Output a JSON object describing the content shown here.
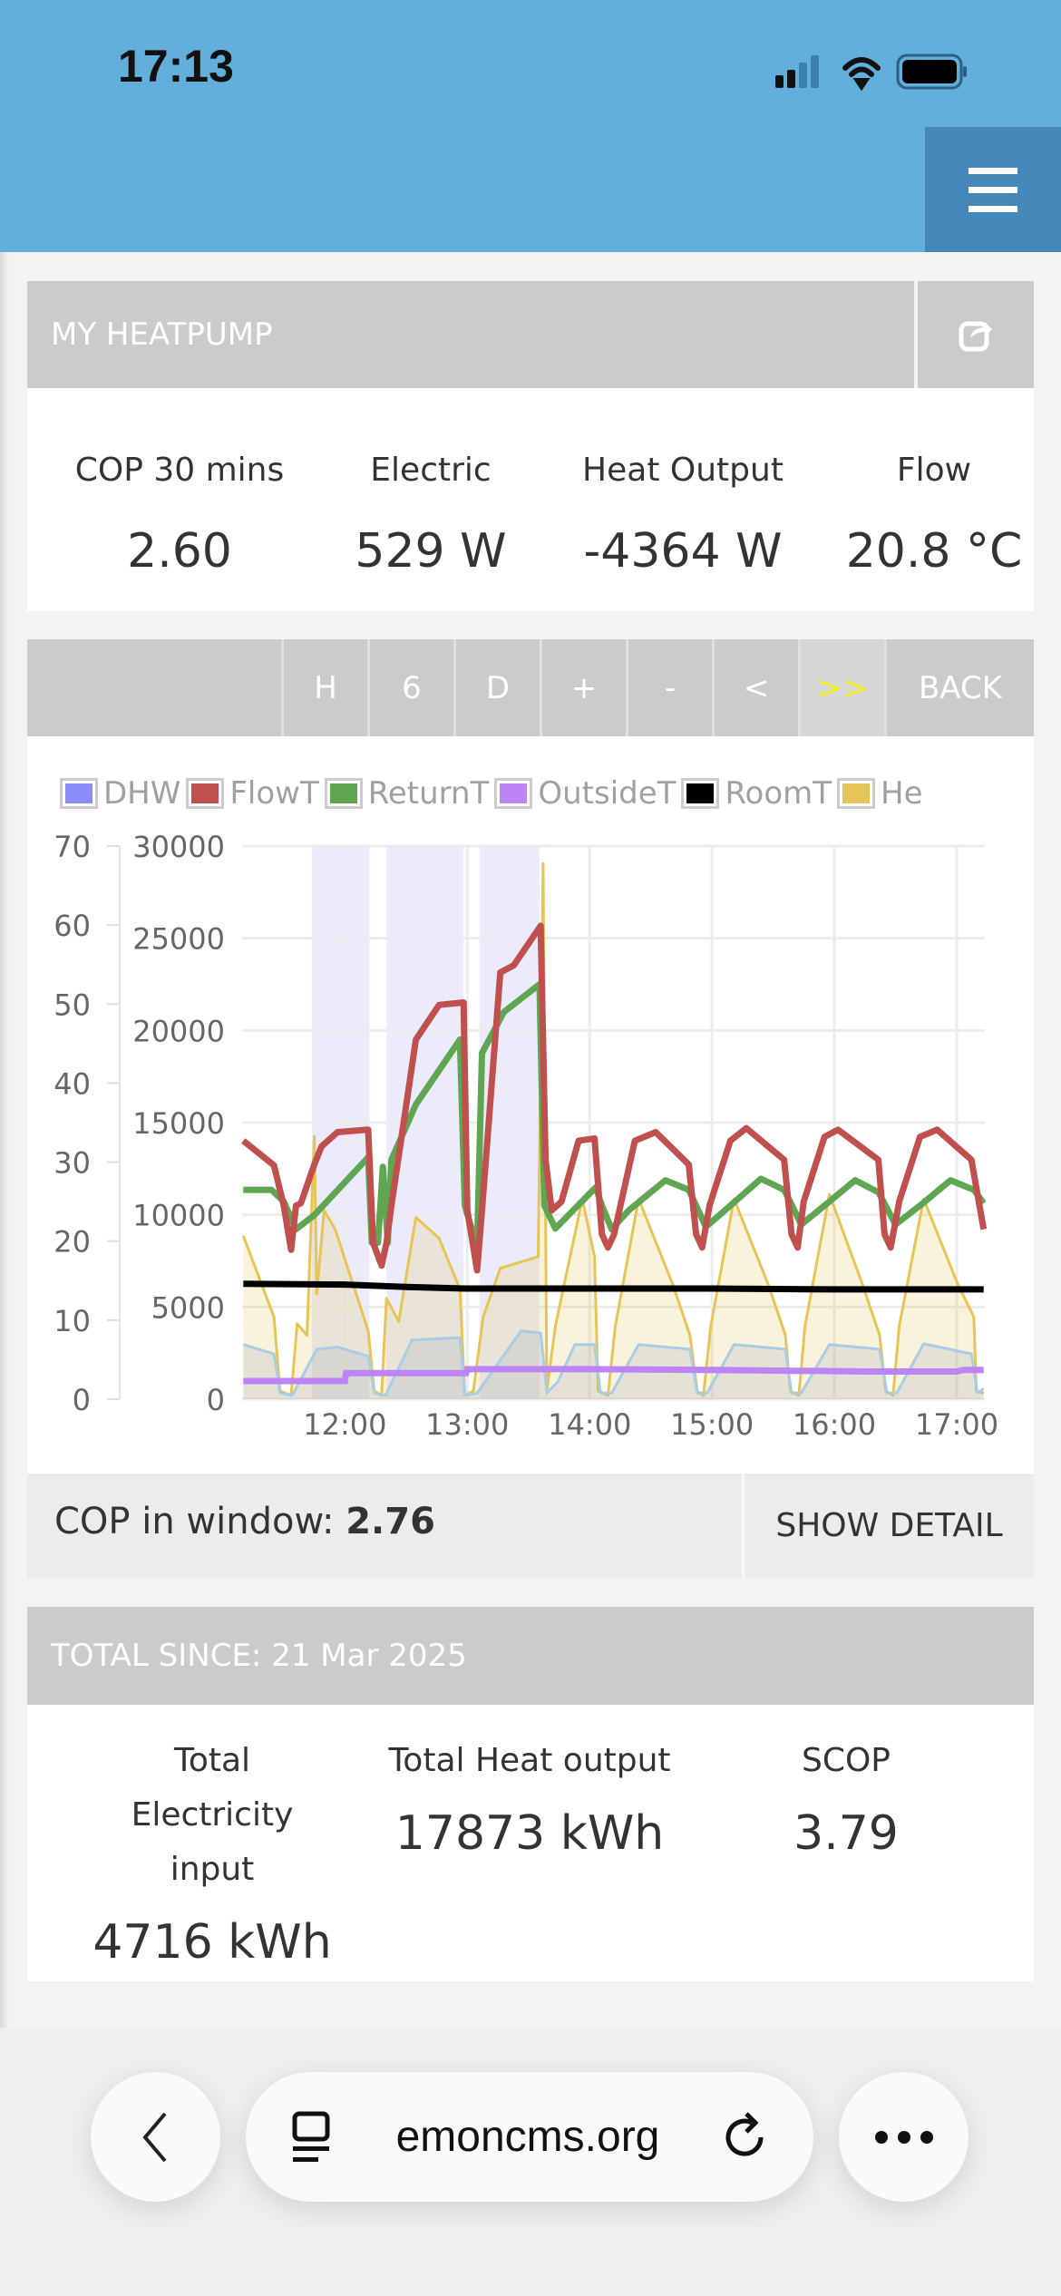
{
  "status_bar": {
    "time": "17:13"
  },
  "app": {
    "title": "MY HEATPUMP"
  },
  "stats": [
    {
      "label": "COP 30 mins",
      "value": "2.60"
    },
    {
      "label": "Electric",
      "value": "529  W"
    },
    {
      "label": "Heat Output",
      "value": "-4364  W"
    },
    {
      "label": "Flow",
      "value": "20.8  °C"
    }
  ],
  "toolbar": {
    "buttons": [
      "H",
      "6",
      "D",
      "+",
      "-",
      "<",
      ">>"
    ],
    "back_label": "BACK",
    "active_color": "#f5ef1e"
  },
  "cop_window": {
    "label": "COP in window: ",
    "value": "2.76",
    "show_detail_label": "SHOW DETAIL"
  },
  "totals": {
    "header": "TOTAL SINCE: 21 Mar 2025",
    "items": [
      {
        "label": "Total Electricity input",
        "value": "4716  kWh"
      },
      {
        "label": "Total Heat output",
        "value": "17873  kWh"
      },
      {
        "label": "SCOP",
        "value": "3.79"
      }
    ]
  },
  "browser": {
    "url": "emoncms.org"
  },
  "chart_data": {
    "type": "line",
    "legend": [
      {
        "name": "DHW",
        "color": "#8a8cf7"
      },
      {
        "name": "FlowT",
        "color": "#c0504d"
      },
      {
        "name": "ReturnT",
        "color": "#5fa552"
      },
      {
        "name": "OutsideT",
        "color": "#bd84f5"
      },
      {
        "name": "RoomT",
        "color": "#000000"
      },
      {
        "name": "He",
        "color": "#e6c455"
      }
    ],
    "xlim": [
      11.16,
      17.23
    ],
    "x_ticks": [
      "12:00",
      "13:00",
      "14:00",
      "15:00",
      "16:00",
      "17:00"
    ],
    "x_tick_values": [
      12,
      13,
      14,
      15,
      16,
      17
    ],
    "y_left": {
      "ylim": [
        0,
        70
      ],
      "ticks": [
        "0",
        "10",
        "20",
        "30",
        "40",
        "50",
        "60",
        "70"
      ]
    },
    "y_right": {
      "ylim": [
        0,
        30000
      ],
      "ticks": [
        "0",
        "5000",
        "10000",
        "15000",
        "20000",
        "25000",
        "30000"
      ]
    },
    "dhw_periods": [
      [
        11.73,
        12.2
      ],
      [
        12.34,
        12.97
      ],
      [
        13.1,
        13.59
      ]
    ],
    "series": {
      "FlowT": [
        [
          11.17,
          32.7
        ],
        [
          11.42,
          29.6
        ],
        [
          11.5,
          24.5
        ],
        [
          11.56,
          18.9
        ],
        [
          11.6,
          24.5
        ],
        [
          11.64,
          24.8
        ],
        [
          11.75,
          29.7
        ],
        [
          11.81,
          32
        ],
        [
          11.94,
          33.8
        ],
        [
          12.19,
          34.1
        ],
        [
          12.23,
          19.8
        ],
        [
          12.3,
          16.9
        ],
        [
          12.34,
          19.8
        ],
        [
          12.38,
          24.5
        ],
        [
          12.58,
          45.5
        ],
        [
          12.77,
          49.9
        ],
        [
          12.97,
          50.2
        ],
        [
          13.0,
          23.9
        ],
        [
          13.08,
          16.3
        ],
        [
          13.12,
          23.9
        ],
        [
          13.27,
          54
        ],
        [
          13.38,
          54.9
        ],
        [
          13.6,
          59.9
        ],
        [
          13.64,
          30.3
        ],
        [
          13.69,
          23.9
        ],
        [
          13.77,
          25
        ],
        [
          13.91,
          32.7
        ],
        [
          14.04,
          33
        ],
        [
          14.1,
          20.9
        ],
        [
          14.15,
          19.2
        ],
        [
          14.2,
          20.9
        ],
        [
          14.37,
          32.7
        ],
        [
          14.54,
          33.8
        ],
        [
          14.81,
          29.7
        ],
        [
          14.87,
          20.9
        ],
        [
          14.92,
          19.2
        ],
        [
          14.98,
          24.5
        ],
        [
          15.15,
          32.7
        ],
        [
          15.28,
          34.3
        ],
        [
          15.59,
          30.3
        ],
        [
          15.65,
          20.9
        ],
        [
          15.7,
          19.2
        ],
        [
          15.75,
          25
        ],
        [
          15.92,
          33.2
        ],
        [
          16.03,
          34.1
        ],
        [
          16.36,
          30.3
        ],
        [
          16.41,
          20.9
        ],
        [
          16.46,
          19.2
        ],
        [
          16.53,
          25
        ],
        [
          16.7,
          33.2
        ],
        [
          16.84,
          34.1
        ],
        [
          17.12,
          30.3
        ],
        [
          17.22,
          21.5
        ]
      ],
      "ReturnT": [
        [
          11.17,
          26.5
        ],
        [
          11.4,
          26.5
        ],
        [
          11.5,
          25
        ],
        [
          11.6,
          21.5
        ],
        [
          11.75,
          23.3
        ],
        [
          12.19,
          30.6
        ],
        [
          12.22,
          19.8
        ],
        [
          12.27,
          19.8
        ],
        [
          12.31,
          29.4
        ],
        [
          12.35,
          19.8
        ],
        [
          12.38,
          30.3
        ],
        [
          12.58,
          37.3
        ],
        [
          12.94,
          45.5
        ],
        [
          12.98,
          24.5
        ],
        [
          13.08,
          19.2
        ],
        [
          13.12,
          43.8
        ],
        [
          13.3,
          49
        ],
        [
          13.59,
          52.5
        ],
        [
          13.63,
          24.5
        ],
        [
          13.72,
          21.6
        ],
        [
          14.05,
          26.8
        ],
        [
          14.1,
          24.5
        ],
        [
          14.18,
          21.5
        ],
        [
          14.32,
          23.9
        ],
        [
          14.62,
          27.7
        ],
        [
          14.81,
          26.5
        ],
        [
          14.95,
          21.8
        ],
        [
          15.15,
          24.5
        ],
        [
          15.4,
          27.9
        ],
        [
          15.59,
          26.5
        ],
        [
          15.73,
          22.1
        ],
        [
          15.92,
          24.5
        ],
        [
          16.17,
          27.7
        ],
        [
          16.36,
          26.2
        ],
        [
          16.5,
          22.1
        ],
        [
          16.7,
          24.5
        ],
        [
          16.95,
          27.7
        ],
        [
          17.14,
          26.5
        ],
        [
          17.22,
          24.8
        ]
      ],
      "RoomT": [
        [
          11.17,
          14.6
        ],
        [
          12.0,
          14.5
        ],
        [
          12.5,
          14.2
        ],
        [
          13.0,
          14.0
        ],
        [
          14.0,
          14.0
        ],
        [
          15.0,
          14.0
        ],
        [
          16.0,
          13.9
        ],
        [
          17.22,
          13.9
        ]
      ],
      "OutsideT": [
        [
          11.17,
          2.3
        ],
        [
          12.0,
          2.3
        ],
        [
          12.01,
          3.3
        ],
        [
          12.99,
          3.3
        ],
        [
          13.0,
          3.8
        ],
        [
          14.0,
          3.8
        ],
        [
          15.0,
          3.7
        ],
        [
          16.3,
          3.5
        ],
        [
          17.0,
          3.5
        ],
        [
          17.05,
          3.7
        ],
        [
          17.22,
          3.7
        ]
      ],
      "He": [
        [
          11.17,
          8855
        ],
        [
          11.42,
          4465
        ],
        [
          11.47,
          450
        ],
        [
          11.56,
          200
        ],
        [
          11.61,
          4090
        ],
        [
          11.69,
          3460
        ],
        [
          11.75,
          14250
        ],
        [
          11.77,
          5720
        ],
        [
          11.83,
          10230
        ],
        [
          11.92,
          9230
        ],
        [
          12.19,
          3710
        ],
        [
          12.24,
          450
        ],
        [
          12.3,
          200
        ],
        [
          12.34,
          5470
        ],
        [
          12.44,
          4210
        ],
        [
          12.58,
          9860
        ],
        [
          12.77,
          8730
        ],
        [
          12.94,
          5970
        ],
        [
          12.98,
          200
        ],
        [
          13.05,
          450
        ],
        [
          13.13,
          4460
        ],
        [
          13.27,
          7100
        ],
        [
          13.58,
          7730
        ],
        [
          13.62,
          29050
        ],
        [
          13.65,
          450
        ],
        [
          13.72,
          3960
        ],
        [
          13.94,
          10860
        ],
        [
          14.04,
          7730
        ],
        [
          14.07,
          450
        ],
        [
          14.15,
          200
        ],
        [
          14.21,
          3960
        ],
        [
          14.4,
          10860
        ],
        [
          14.68,
          6220
        ],
        [
          14.82,
          3460
        ],
        [
          14.88,
          450
        ],
        [
          14.93,
          200
        ],
        [
          14.99,
          3960
        ],
        [
          15.18,
          10860
        ],
        [
          15.46,
          6220
        ],
        [
          15.6,
          3460
        ],
        [
          15.64,
          450
        ],
        [
          15.71,
          200
        ],
        [
          15.76,
          3960
        ],
        [
          15.96,
          11110
        ],
        [
          16.23,
          6220
        ],
        [
          16.37,
          3460
        ],
        [
          16.42,
          450
        ],
        [
          16.48,
          200
        ],
        [
          16.53,
          3960
        ],
        [
          16.73,
          10860
        ],
        [
          17.01,
          6220
        ],
        [
          17.14,
          4460
        ],
        [
          17.16,
          450
        ],
        [
          17.22,
          330
        ]
      ],
      "Electric": [
        [
          11.17,
          2960
        ],
        [
          11.42,
          2460
        ],
        [
          11.47,
          330
        ],
        [
          11.57,
          200
        ],
        [
          11.77,
          2710
        ],
        [
          11.94,
          2830
        ],
        [
          12.19,
          2330
        ],
        [
          12.24,
          330
        ],
        [
          12.33,
          200
        ],
        [
          12.55,
          3210
        ],
        [
          12.94,
          3340
        ],
        [
          12.98,
          200
        ],
        [
          13.08,
          330
        ],
        [
          13.44,
          3710
        ],
        [
          13.6,
          3590
        ],
        [
          13.65,
          330
        ],
        [
          13.74,
          950
        ],
        [
          13.88,
          2960
        ],
        [
          14.04,
          2960
        ],
        [
          14.09,
          330
        ],
        [
          14.18,
          330
        ],
        [
          14.4,
          2960
        ],
        [
          14.82,
          2710
        ],
        [
          14.88,
          330
        ],
        [
          14.96,
          330
        ],
        [
          15.18,
          2960
        ],
        [
          15.6,
          2710
        ],
        [
          15.65,
          330
        ],
        [
          15.73,
          330
        ],
        [
          15.96,
          2960
        ],
        [
          16.37,
          2710
        ],
        [
          16.43,
          330
        ],
        [
          16.51,
          330
        ],
        [
          16.73,
          3010
        ],
        [
          17.12,
          2460
        ],
        [
          17.17,
          330
        ],
        [
          17.22,
          580
        ]
      ]
    }
  }
}
